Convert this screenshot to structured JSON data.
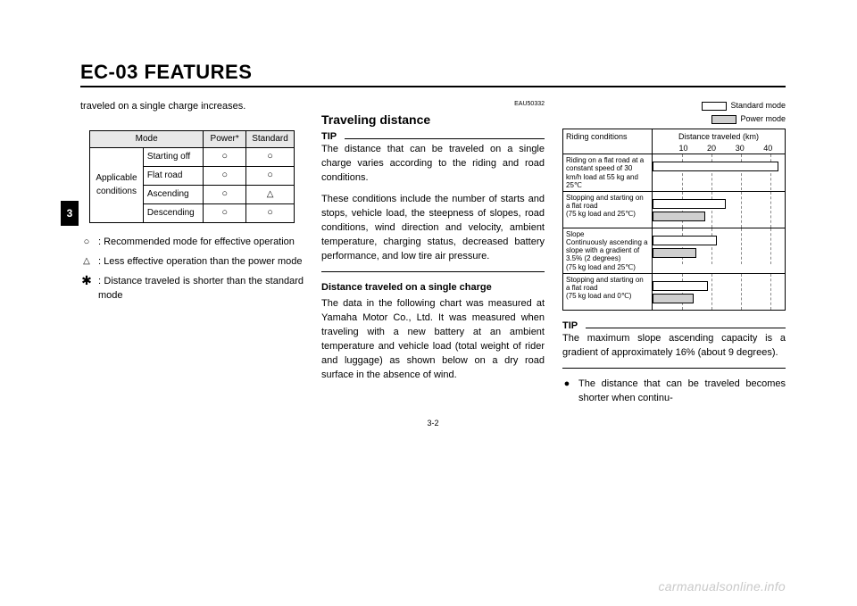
{
  "doc": {
    "title": "EC-03 FEATURES",
    "section_tab": "3",
    "page_number": "3-2",
    "watermark": "carmanualsonline.info"
  },
  "col1": {
    "intro": "traveled on a single charge increases.",
    "table": {
      "headers": {
        "mode": "Mode",
        "power": "Power*",
        "standard": "Standard"
      },
      "row_group_label": "Applicable conditions",
      "rows": [
        {
          "label": "Starting off",
          "power": "○",
          "standard": "○"
        },
        {
          "label": "Flat road",
          "power": "○",
          "standard": "○"
        },
        {
          "label": "Ascending",
          "power": "○",
          "standard": "△"
        },
        {
          "label": "Descending",
          "power": "○",
          "standard": "○"
        }
      ]
    },
    "legend": [
      {
        "sym": "○",
        "text": ": Recommended mode for effective operation"
      },
      {
        "sym": "△",
        "text": ": Less effective operation than the power mode"
      },
      {
        "sym": "✱",
        "text": ": Distance traveled is shorter than the standard mode"
      }
    ]
  },
  "col2": {
    "doc_code": "EAU50332",
    "heading": "Traveling distance",
    "tip_label": "TIP",
    "tip_text": "The distance that can be traveled on a single charge varies according to the riding and road conditions.",
    "tip_text2": "These conditions include the number of starts and stops, vehicle load, the steepness of slopes, road conditions, wind direction and velocity, ambient temperature, charging status, decreased battery performance, and low tire air pressure.",
    "sub_heading": "Distance traveled on a single charge",
    "body": "The data in the following chart was measured at Yamaha Motor Co., Ltd. It was measured when traveling with a new battery at an ambient temperature and vehicle load (total weight of rider and luggage) as shown below on a dry road surface in the absence of wind."
  },
  "col3": {
    "legend": {
      "standard": "Standard mode",
      "power": "Power mode"
    },
    "chart": {
      "y_header": "Riding conditions",
      "x_header": "Distance traveled (km)",
      "x_ticks": [
        "10",
        "20",
        "30",
        "40"
      ],
      "x_max": 45,
      "grid_positions_pct": [
        22.2,
        44.4,
        66.7,
        88.9
      ],
      "bar_colors": {
        "standard": "#ffffff",
        "power": "#cfcfcf",
        "border": "#000000",
        "grid": "#888888"
      },
      "rows": [
        {
          "label": "Riding on a flat road at a constant speed of 30 km/h load at 55 kg and 25℃",
          "standard_km": 43,
          "power_km": 43,
          "show_power": false
        },
        {
          "label": "Stopping and starting on a flat road\n(75 kg load and 25℃)",
          "standard_km": 25,
          "power_km": 18
        },
        {
          "label": "Slope\nContinuously ascending a slope with a gradient of 3.5% (2 degrees)\n(75 kg load and 25℃)",
          "standard_km": 22,
          "power_km": 15
        },
        {
          "label": "Stopping and starting on a flat road\n(75 kg load and 0℃)",
          "standard_km": 19,
          "power_km": 14
        }
      ]
    },
    "tip_label": "TIP",
    "tip_text": "The maximum slope ascending capacity is a gradient of approximately 16% (about 9 degrees).",
    "bullet": "The distance that can be traveled becomes shorter when continu-"
  }
}
